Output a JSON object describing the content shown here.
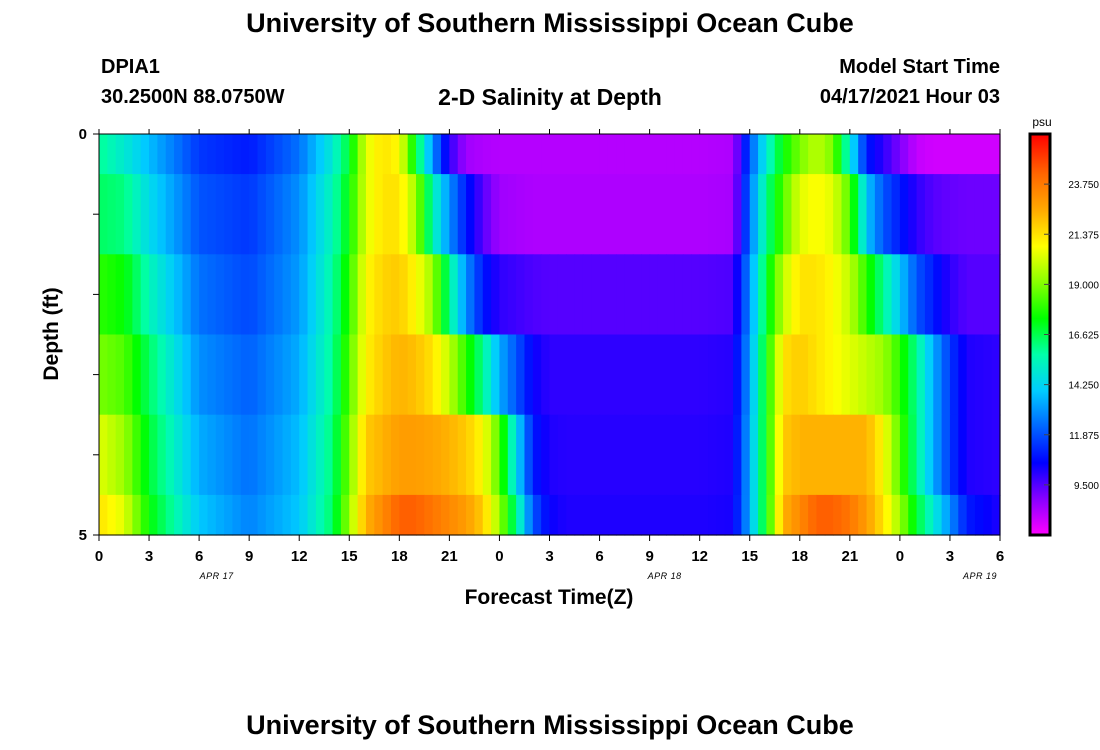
{
  "header": {
    "title": "University of Southern Mississippi Ocean Cube",
    "station": "DPIA1",
    "coords": "30.2500N  88.0750W",
    "plot_title": "2-D Salinity at Depth",
    "model_start_label": "Model Start Time",
    "model_start_value": "04/17/2021 Hour 03"
  },
  "footer": {
    "title": "University of Southern Mississippi Ocean Cube"
  },
  "chart_data": {
    "type": "heatmap",
    "title": "2-D Salinity at Depth",
    "xlabel": "Forecast Time(Z)",
    "ylabel": "Depth (ft)",
    "x_tick_labels": [
      "0",
      "3",
      "6",
      "9",
      "12",
      "15",
      "18",
      "21",
      "0",
      "3",
      "6",
      "9",
      "12",
      "15",
      "18",
      "21",
      "0",
      "3",
      "6"
    ],
    "date_labels": [
      "APR 17",
      "APR 18",
      "APR 19"
    ],
    "y_tick_labels": [
      "0",
      "5"
    ],
    "ylim": [
      0,
      5
    ],
    "colorbar": {
      "unit": "psu",
      "range": [
        7.125,
        26.125
      ],
      "ticks": [
        "23.750",
        "21.375",
        "19.000",
        "16.625",
        "14.250",
        "11.875",
        "9.500"
      ],
      "colors": [
        "#ff00ff",
        "#8800ff",
        "#0000ff",
        "#0066ff",
        "#00ccff",
        "#00ffaa",
        "#00ff00",
        "#88ff00",
        "#ffff00",
        "#ffaa00",
        "#ff6600",
        "#ff0000"
      ]
    },
    "depth_levels": [
      0,
      1,
      2,
      3,
      4,
      5
    ],
    "time_nodes_hours": [
      0,
      1.5,
      3,
      6,
      9,
      12,
      14,
      15,
      16,
      17,
      18,
      19,
      20,
      21,
      22,
      23,
      24,
      25,
      26,
      27,
      28,
      30,
      33,
      36,
      38,
      39,
      40,
      41,
      42,
      43,
      44,
      45,
      46,
      47,
      48,
      49,
      50,
      51,
      52,
      54
    ],
    "salinity": [
      [
        16,
        15,
        13.8,
        11.5,
        11,
        12.5,
        15,
        17,
        20.5,
        21.5,
        21,
        17,
        13,
        10,
        8.5,
        8.3,
        8.2,
        8.2,
        8.2,
        8.2,
        8.2,
        8.2,
        8.2,
        8.2,
        8.3,
        12,
        15,
        17.5,
        19,
        20,
        19,
        15,
        11,
        10,
        9,
        8,
        7.8,
        7.8,
        7.8,
        7.8
      ],
      [
        16.5,
        16.2,
        14.5,
        12,
        11.5,
        13,
        15.5,
        17.5,
        20.5,
        21.5,
        21.5,
        19.5,
        15.5,
        13,
        11,
        9.5,
        8.5,
        8.4,
        8.3,
        8.3,
        8.3,
        8.3,
        8.3,
        8.3,
        8.4,
        12.5,
        16,
        18.5,
        20.5,
        21,
        20.5,
        18.5,
        14,
        12,
        11,
        10,
        9.5,
        9.3,
        9.2,
        9.2
      ],
      [
        18,
        17.5,
        15.5,
        12.5,
        11.8,
        13.2,
        15.8,
        18,
        21,
        21.8,
        22,
        21,
        19.5,
        16,
        13,
        11,
        10,
        9.8,
        9.6,
        9.5,
        9.5,
        9.5,
        9.5,
        9.5,
        9.6,
        13,
        17,
        20,
        21.5,
        21.5,
        21,
        20,
        18,
        16,
        14,
        12,
        11,
        10,
        9.5,
        9.5
      ],
      [
        19,
        18.5,
        16.5,
        13,
        12.2,
        13.5,
        16,
        18.5,
        21.2,
        22,
        22.5,
        22.2,
        21.5,
        20,
        18,
        16,
        13.5,
        12,
        10.5,
        10,
        10,
        10,
        10,
        10,
        10.1,
        13.3,
        17.5,
        21.5,
        22,
        21.5,
        21,
        20.5,
        20,
        19.5,
        18,
        16,
        13.5,
        11.5,
        10.2,
        10
      ],
      [
        20.5,
        19.5,
        17,
        13.5,
        12.5,
        13.8,
        16.3,
        19,
        22,
        22.5,
        23,
        23,
        22.8,
        22.5,
        22,
        21,
        18.5,
        14.5,
        11,
        10.2,
        10.1,
        10.1,
        10.1,
        10.1,
        10.2,
        13.5,
        17.5,
        22,
        22.5,
        22.5,
        22.5,
        22.5,
        22.5,
        21,
        18.5,
        16,
        13.5,
        11.5,
        10.2,
        10
      ],
      [
        21.5,
        20.5,
        17.5,
        14,
        12.8,
        14,
        16.5,
        19.5,
        22.5,
        23.5,
        24.5,
        24.5,
        24,
        23.5,
        23,
        22,
        19.5,
        16,
        12,
        10.5,
        10.2,
        10.2,
        10.2,
        10.2,
        10.3,
        13.5,
        17.5,
        22.5,
        23.5,
        24.5,
        24.5,
        24,
        23,
        21.5,
        19.5,
        17,
        15,
        13,
        11,
        10.2
      ]
    ]
  }
}
